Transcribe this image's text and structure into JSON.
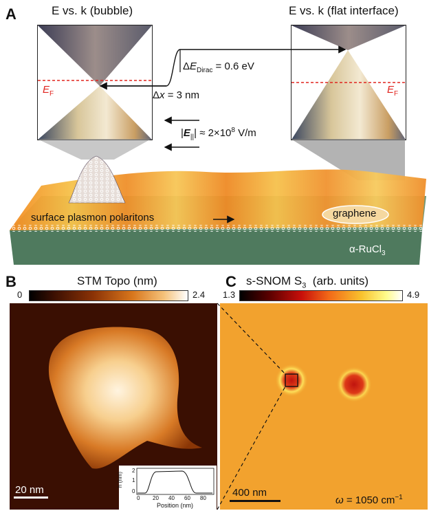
{
  "panel_a": {
    "letter": "A",
    "cone_left_title": "E vs. k (bubble)",
    "cone_right_title": "E vs. k (flat interface)",
    "ef_left": "E",
    "ef_left_sub": "F",
    "ef_right": "E",
    "ef_right_sub": "F",
    "delta_e_prefix": "Δ",
    "delta_e_symbol": "E",
    "delta_e_sub": "Dirac",
    "delta_e_value": " = 0.6 eV",
    "delta_x_prefix": "Δ",
    "delta_x_symbol": "x",
    "delta_x_value": " = 3 nm",
    "field_open": "|",
    "field_symbol": "E",
    "field_sub": "||",
    "field_value": "| ≈ 2×10",
    "field_exp": "8",
    "field_unit": " V/m",
    "spp_label": "surface plasmon polaritons",
    "graphene_label": "graphene",
    "substrate_label": "α-RuCl",
    "substrate_sub": "3"
  },
  "panel_b": {
    "letter": "B",
    "title": "STM Topo (nm)",
    "cbar_min": "0",
    "cbar_max": "2.4",
    "scalebar": "20 nm",
    "inset": {
      "ylabel": "h (nm)",
      "xlabel": "Position (nm)",
      "yticks": [
        "0",
        "1",
        "2"
      ],
      "xticks": [
        "0",
        "20",
        "40",
        "60",
        "80"
      ]
    }
  },
  "panel_c": {
    "letter": "C",
    "title_prefix": "s-SNOM S",
    "title_sub": "3",
    "title_suffix": "  (arb. units)",
    "cbar_min": "1.3",
    "cbar_max": "4.9",
    "scalebar": "400 nm",
    "omega_symbol": "ω",
    "omega_value": " = 1050 cm",
    "omega_exp": "−1"
  },
  "colors": {
    "ef_red": "#e0231d",
    "substrate": "#4f7a5e",
    "snom_bg": "#f2a22e",
    "stm_dark": "#3a0f02"
  }
}
